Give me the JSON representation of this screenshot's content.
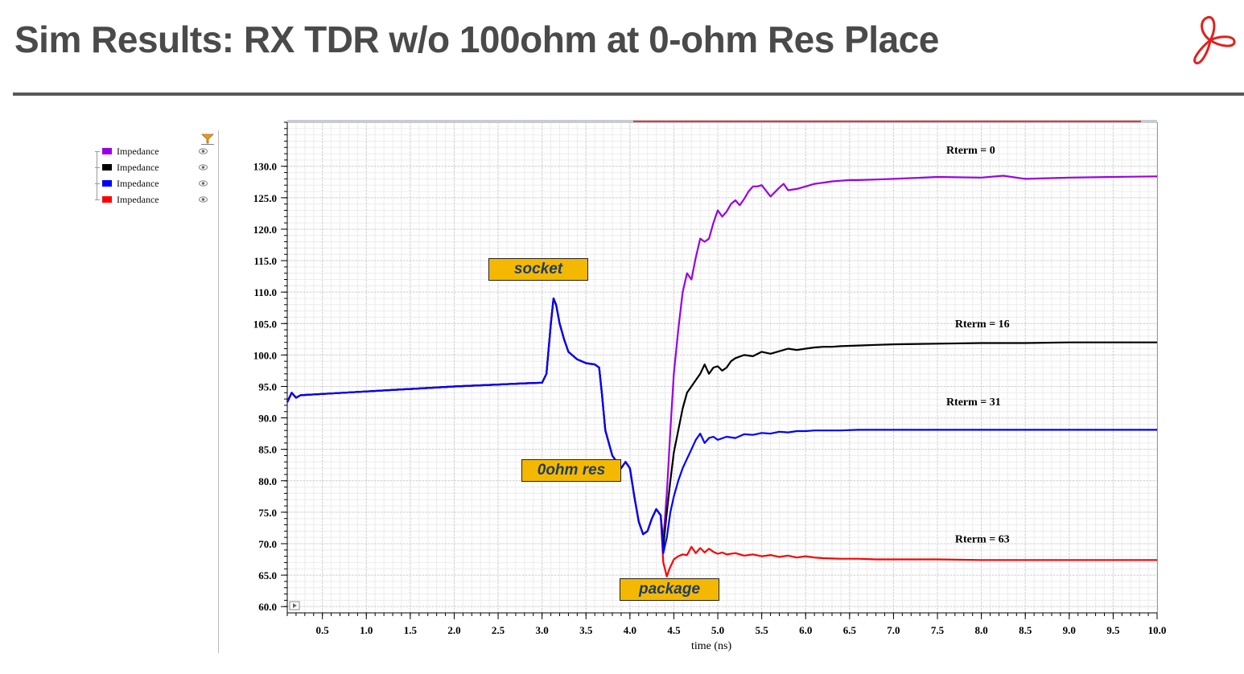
{
  "slide": {
    "title": "Sim Results: RX TDR w/o 100ohm at 0-ohm Res Place",
    "title_color": "#4a4a4a",
    "logo_color": "#e0201e",
    "logo_icon": "propeller-logo-icon"
  },
  "legend": {
    "filter_icon": "filter-icon",
    "eye_icon": "eye-icon",
    "items": [
      {
        "label": "Impedance",
        "color": "#9900e6"
      },
      {
        "label": "Impedance",
        "color": "#000000"
      },
      {
        "label": "Impedance",
        "color": "#0000ff"
      },
      {
        "label": "Impedance",
        "color": "#ff0000"
      }
    ]
  },
  "annotations": {
    "socket": "socket",
    "res": "0ohm res",
    "package": "package",
    "box_color": "#f5b800"
  },
  "chart_data": {
    "type": "line",
    "title": "",
    "xlabel": "time (ns)",
    "ylabel": "",
    "xlim": [
      0.1,
      10.0
    ],
    "ylim": [
      59.0,
      137.0
    ],
    "x_ticks": [
      0.5,
      1.0,
      1.5,
      2.0,
      2.5,
      3.0,
      3.5,
      4.0,
      4.5,
      5.0,
      5.5,
      6.0,
      6.5,
      7.0,
      7.5,
      8.0,
      8.5,
      9.0,
      9.5,
      10.0
    ],
    "x_tick_labels": [
      "0.5",
      "1.0",
      "1.5",
      "2.0",
      "2.5",
      "3.0",
      "3.5",
      "4.0",
      "4.5",
      "5.0",
      "5.5",
      "6.0",
      "6.5",
      "7.0",
      "7.5",
      "8.0",
      "8.5",
      "9.0",
      "9.5",
      "10.0"
    ],
    "y_ticks": [
      60,
      65,
      70,
      75,
      80,
      85,
      90,
      95,
      100,
      105,
      110,
      115,
      120,
      125,
      130
    ],
    "y_tick_labels": [
      "60.0",
      "65.0",
      "70.0",
      "75.0",
      "80.0",
      "85.0",
      "90.0",
      "95.0",
      "100.0",
      "105.0",
      "110.0",
      "115.0",
      "120.0",
      "125.0",
      "130.0"
    ],
    "grid": true,
    "legend_position": "left panel",
    "common": {
      "x": [
        0.1,
        0.15,
        0.2,
        0.25,
        0.5,
        1.0,
        1.5,
        2.0,
        2.5,
        2.8,
        3.0,
        3.05,
        3.1,
        3.13,
        3.16,
        3.2,
        3.25,
        3.3,
        3.4,
        3.5,
        3.6,
        3.65,
        3.68,
        3.72,
        3.8,
        3.9,
        3.95,
        4.0,
        4.05,
        4.1,
        4.15,
        4.2,
        4.25,
        4.3,
        4.35
      ],
      "y": [
        92.5,
        94.0,
        93.2,
        93.6,
        93.8,
        94.2,
        94.6,
        95.0,
        95.3,
        95.5,
        95.6,
        97.0,
        105.0,
        109.0,
        108.0,
        105.0,
        102.5,
        100.5,
        99.3,
        98.7,
        98.5,
        98.0,
        94.0,
        88.0,
        84.0,
        82.0,
        83.0,
        82.0,
        77.5,
        73.5,
        71.5,
        72.0,
        74.0,
        75.5,
        74.5
      ]
    },
    "series": [
      {
        "color": "#9900e6",
        "annotation": "Rterm = 0",
        "x": [
          4.38,
          4.42,
          4.46,
          4.5,
          4.55,
          4.6,
          4.65,
          4.7,
          4.75,
          4.8,
          4.85,
          4.9,
          4.95,
          5.0,
          5.05,
          5.1,
          5.15,
          5.2,
          5.25,
          5.3,
          5.35,
          5.4,
          5.45,
          5.5,
          5.6,
          5.7,
          5.75,
          5.8,
          5.9,
          6.0,
          6.05,
          6.1,
          6.2,
          6.3,
          6.4,
          6.5,
          6.6,
          6.8,
          7.0,
          7.5,
          8.0,
          8.25,
          8.5,
          9.0,
          9.5,
          10.0
        ],
        "y": [
          70.5,
          78.0,
          88.0,
          97.0,
          104.0,
          110.0,
          113.0,
          112.0,
          115.5,
          118.5,
          118.0,
          118.5,
          121.0,
          123.0,
          122.0,
          122.8,
          124.0,
          124.6,
          123.8,
          124.8,
          126.0,
          126.8,
          126.8,
          127.0,
          125.2,
          126.6,
          127.2,
          126.2,
          126.4,
          126.8,
          127.0,
          127.2,
          127.4,
          127.6,
          127.7,
          127.8,
          127.8,
          127.9,
          128.0,
          128.3,
          128.2,
          128.5,
          128.0,
          128.2,
          128.3,
          128.4
        ]
      },
      {
        "color": "#000000",
        "annotation": "Rterm = 16",
        "x": [
          4.38,
          4.42,
          4.46,
          4.5,
          4.55,
          4.6,
          4.65,
          4.7,
          4.75,
          4.8,
          4.85,
          4.9,
          4.95,
          5.0,
          5.05,
          5.1,
          5.15,
          5.2,
          5.3,
          5.4,
          5.5,
          5.6,
          5.7,
          5.8,
          5.9,
          6.0,
          6.1,
          6.2,
          6.3,
          6.4,
          6.6,
          6.8,
          7.0,
          7.5,
          8.0,
          8.5,
          9.0,
          9.5,
          10.0
        ],
        "y": [
          69.5,
          75.0,
          80.0,
          84.5,
          88.0,
          91.5,
          94.0,
          95.0,
          96.0,
          97.0,
          98.5,
          97.0,
          98.0,
          98.2,
          97.5,
          98.0,
          99.0,
          99.5,
          100.0,
          99.8,
          100.5,
          100.2,
          100.6,
          101.0,
          100.8,
          101.0,
          101.2,
          101.3,
          101.3,
          101.4,
          101.5,
          101.6,
          101.7,
          101.8,
          101.9,
          101.9,
          102.0,
          102.0,
          102.0
        ]
      },
      {
        "color": "#0000ff",
        "annotation": "Rterm = 31",
        "x": [
          4.38,
          4.42,
          4.46,
          4.5,
          4.55,
          4.6,
          4.65,
          4.7,
          4.75,
          4.8,
          4.85,
          4.9,
          4.95,
          5.0,
          5.1,
          5.2,
          5.3,
          5.4,
          5.5,
          5.6,
          5.7,
          5.8,
          5.9,
          6.0,
          6.1,
          6.2,
          6.4,
          6.6,
          6.8,
          7.0,
          7.5,
          8.0,
          8.5,
          9.0,
          9.5,
          10.0
        ],
        "y": [
          68.5,
          71.0,
          75.0,
          77.5,
          80.0,
          82.0,
          83.5,
          85.0,
          86.5,
          87.5,
          86.0,
          86.8,
          87.0,
          86.5,
          87.0,
          86.8,
          87.4,
          87.3,
          87.6,
          87.5,
          87.8,
          87.7,
          87.9,
          87.9,
          88.0,
          88.0,
          88.0,
          88.1,
          88.1,
          88.1,
          88.1,
          88.1,
          88.1,
          88.1,
          88.1,
          88.1
        ]
      },
      {
        "color": "#ff0000",
        "annotation": "Rterm = 63",
        "x": [
          4.38,
          4.42,
          4.45,
          4.5,
          4.55,
          4.6,
          4.65,
          4.7,
          4.75,
          4.8,
          4.85,
          4.9,
          4.95,
          5.0,
          5.05,
          5.1,
          5.2,
          5.3,
          5.4,
          5.5,
          5.6,
          5.7,
          5.8,
          5.9,
          6.0,
          6.1,
          6.2,
          6.4,
          6.6,
          6.8,
          7.0,
          7.5,
          8.0,
          8.5,
          9.0,
          9.5,
          10.0
        ],
        "y": [
          67.0,
          64.8,
          66.0,
          67.5,
          68.0,
          68.3,
          68.2,
          69.5,
          68.5,
          69.3,
          68.6,
          69.2,
          68.7,
          68.4,
          68.6,
          68.3,
          68.5,
          68.1,
          68.3,
          68.0,
          68.2,
          67.9,
          68.1,
          67.8,
          68.0,
          67.8,
          67.7,
          67.6,
          67.6,
          67.5,
          67.5,
          67.5,
          67.4,
          67.4,
          67.4,
          67.4,
          67.4
        ]
      }
    ],
    "label_positions": [
      {
        "x": 7.6,
        "y": 132.0
      },
      {
        "x": 7.7,
        "y": 104.4
      },
      {
        "x": 7.6,
        "y": 92.0
      },
      {
        "x": 7.7,
        "y": 70.2
      }
    ]
  }
}
